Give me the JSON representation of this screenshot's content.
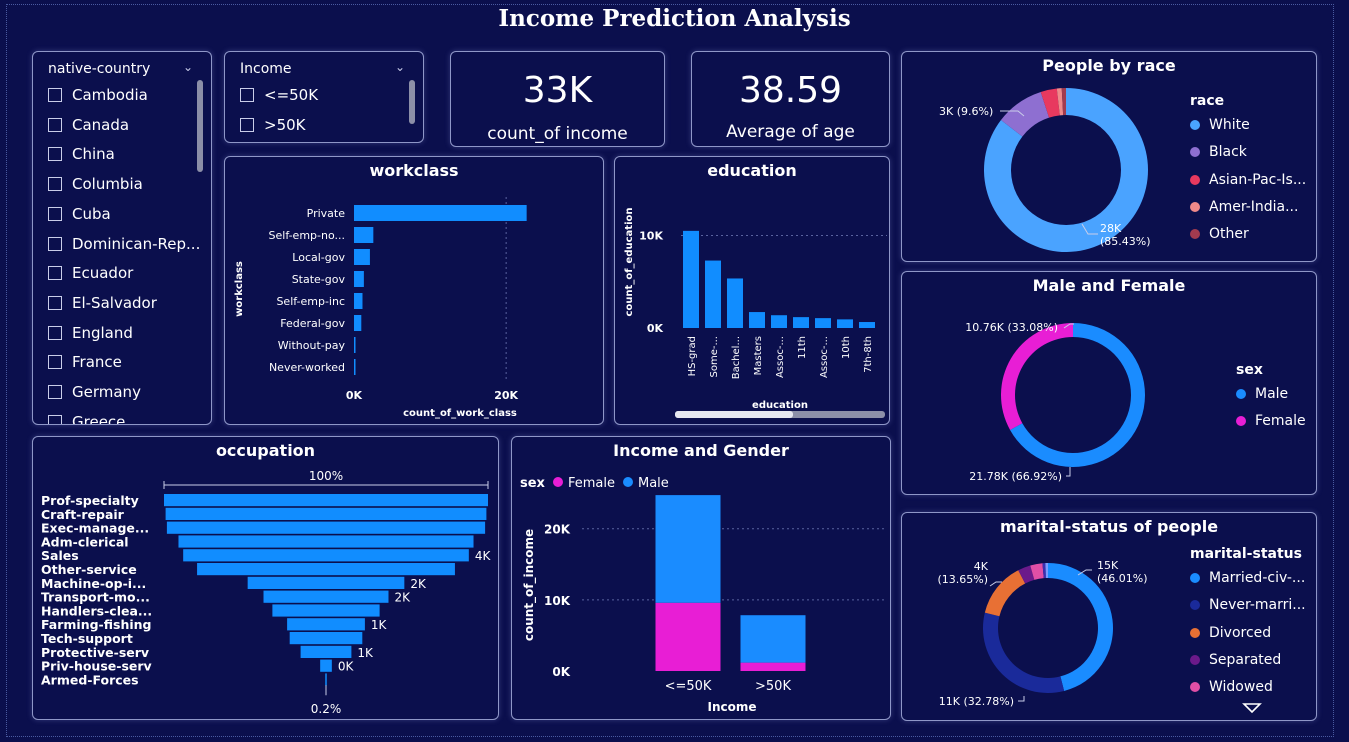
{
  "page": {
    "title": "Income Prediction Analysis"
  },
  "colors": {
    "background": "#0b0f4d",
    "bar": "#118dff",
    "female": "#e81ed5",
    "male": "#1a8cff"
  },
  "slicers": {
    "country": {
      "title": "native-country",
      "items": [
        "Cambodia",
        "Canada",
        "China",
        "Columbia",
        "Cuba",
        "Dominican-Rep...",
        "Ecuador",
        "El-Salvador",
        "England",
        "France",
        "Germany",
        "Greece"
      ]
    },
    "income": {
      "title": "Income",
      "items": [
        "<=50K",
        ">50K"
      ]
    }
  },
  "kpis": {
    "count": {
      "value": "33K",
      "label": "count_of income"
    },
    "age": {
      "value": "38.59",
      "label": "Average of age"
    }
  },
  "workclass": {
    "title": "workclass",
    "chart_data": {
      "type": "bar",
      "orientation": "horizontal",
      "categories": [
        "Private",
        "Self-emp-no...",
        "Local-gov",
        "State-gov",
        "Self-emp-inc",
        "Federal-gov",
        "Without-pay",
        "Never-worked"
      ],
      "values": [
        22696,
        2541,
        2093,
        1298,
        1116,
        960,
        14,
        7
      ],
      "xlabel": "count_of_work_class",
      "ylabel": "workclass",
      "xticks": [
        {
          "v": 0,
          "label": "0K"
        },
        {
          "v": 20000,
          "label": "20K"
        }
      ],
      "xlim": [
        0,
        28000
      ],
      "grid": true
    }
  },
  "education": {
    "title": "education",
    "chart_data": {
      "type": "bar",
      "categories": [
        "HS-grad",
        "Some-...",
        "Bachel...",
        "Masters",
        "Assoc-...",
        "11th",
        "Assoc-...",
        "10th",
        "7th-8th"
      ],
      "values": [
        10501,
        7291,
        5355,
        1723,
        1382,
        1175,
        1067,
        933,
        646
      ],
      "xlabel": "education",
      "ylabel": "count_of_education",
      "yticks": [
        {
          "v": 0,
          "label": "0K"
        },
        {
          "v": 10000,
          "label": "10K"
        }
      ],
      "ylim": [
        0,
        12000
      ],
      "grid": true
    }
  },
  "occupation": {
    "title": "occupation",
    "chart_data": {
      "type": "funnel",
      "categories": [
        "Prof-specialty",
        "Craft-repair",
        "Exec-manage...",
        "Adm-clerical",
        "Sales",
        "Other-service",
        "Machine-op-i...",
        "Transport-mo...",
        "Handlers-clea...",
        "Farming-fishing",
        "Tech-support",
        "Protective-serv",
        "Priv-house-serv",
        "Armed-Forces"
      ],
      "values": [
        4140,
        4099,
        4066,
        3770,
        3650,
        3295,
        2002,
        1597,
        1370,
        994,
        928,
        649,
        149,
        9
      ],
      "top_label": "100%",
      "bottom_label": "0.2%",
      "data_labels": [
        "",
        "",
        "",
        "",
        "4K",
        "",
        "2K",
        "2K",
        "",
        "1K",
        "",
        "1K",
        "0K",
        ""
      ]
    }
  },
  "income_gender": {
    "title": "Income and Gender",
    "legend_title": "sex",
    "chart_data": {
      "type": "bar",
      "stacked": true,
      "categories": [
        "<=50K",
        ">50K"
      ],
      "series": [
        {
          "name": "Female",
          "values": [
            9592,
            1179
          ]
        },
        {
          "name": "Male",
          "values": [
            15128,
            6662
          ]
        }
      ],
      "xlabel": "Income",
      "ylabel": "count_of_income",
      "yticks": [
        {
          "v": 0,
          "label": "0K"
        },
        {
          "v": 10000,
          "label": "10K"
        },
        {
          "v": 20000,
          "label": "20K"
        }
      ],
      "ylim": [
        0,
        26000
      ],
      "legend_position": "top-left"
    }
  },
  "race": {
    "title": "People by race",
    "legend_title": "race",
    "chart_data": {
      "type": "pie",
      "donut": true,
      "categories": [
        "White",
        "Black",
        "Asian-Pac-Is...",
        "Amer-India...",
        "Other"
      ],
      "values": [
        85.43,
        9.59,
        3.19,
        0.96,
        0.83
      ],
      "colors": [
        "#4aa3ff",
        "#8e6fd1",
        "#e8395f",
        "#f08a8a",
        "#a23b4f"
      ],
      "data_labels": [
        "28K\n(85.43%)",
        "3K (9.6%)",
        "",
        "",
        ""
      ],
      "legend_position": "right"
    }
  },
  "sex": {
    "title": "Male and Female",
    "legend_title": "sex",
    "chart_data": {
      "type": "pie",
      "donut": true,
      "categories": [
        "Male",
        "Female"
      ],
      "values": [
        66.92,
        33.08
      ],
      "colors": [
        "#1a8cff",
        "#e81ed5"
      ],
      "data_labels": [
        "21.78K (66.92%)",
        "10.76K (33.08%)"
      ],
      "legend_position": "right"
    }
  },
  "marital": {
    "title": "marital-status of people",
    "legend_title": "marital-status",
    "chart_data": {
      "type": "pie",
      "donut": true,
      "categories": [
        "Married-civ-...",
        "Never-marri...",
        "Divorced",
        "Separated",
        "Widowed"
      ],
      "values": [
        46.01,
        32.78,
        13.65,
        3.15,
        3.05
      ],
      "extra_values": [
        0.71,
        0.65
      ],
      "colors": [
        "#1a8cff",
        "#1a2a9a",
        "#e87034",
        "#6b1a8a",
        "#e04fa6"
      ],
      "extra_colors": [
        "#3b2fb0",
        "#7a9bff"
      ],
      "data_labels": [
        "15K\n(46.01%)",
        "11K (32.78%)",
        "4K\n(13.65%)",
        "",
        ""
      ],
      "legend_position": "right"
    }
  }
}
